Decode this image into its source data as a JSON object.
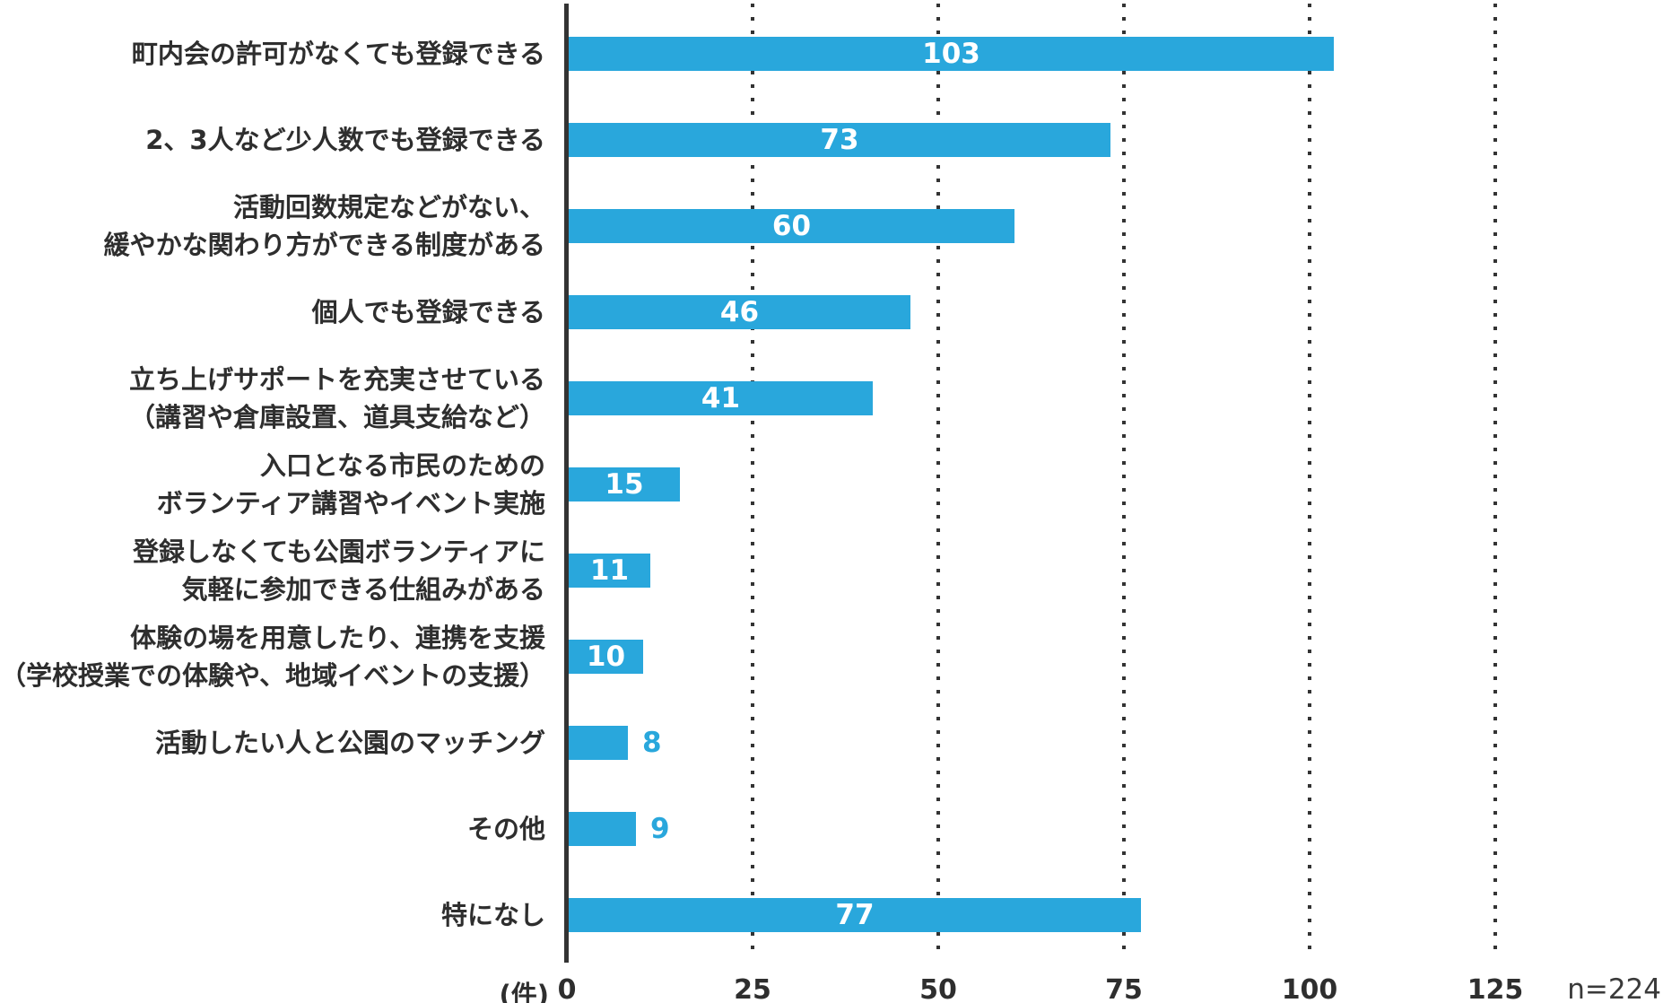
{
  "chart_data": {
    "type": "bar",
    "orientation": "horizontal",
    "title": "",
    "xlabel": "(件)",
    "ylabel": "",
    "sample_note": "n=224",
    "xlim": [
      0,
      125
    ],
    "x_ticks": [
      0,
      25,
      50,
      75,
      100,
      125
    ],
    "grid": "dotted vertical gridlines at each tick, no horizontal grid",
    "legend": "none",
    "colors": {
      "bar": "#29A7DC",
      "value_inside": "#FFFFFF",
      "value_outside": "#29A7DC",
      "category_text": "#2E2E2E",
      "tick_text": "#2E2E2E",
      "grid_and_axis": "#333333",
      "background": "#FFFFFF"
    },
    "categories": [
      "町内会の許可がなくても登録できる",
      "2、3人など少人数でも登録できる",
      "活動回数規定などがない、\n緩やかな関わり方ができる制度がある",
      "個人でも登録できる",
      "立ち上げサポートを充実させている\n（講習や倉庫設置、道具支給など）",
      "入口となる市民のための\nボランティア講習やイベント実施",
      "登録しなくても公園ボランティアに\n気軽に参加できる仕組みがある",
      "体験の場を用意したり、連携を支援\n（学校授業での体験や、地域イベントの支援）",
      "活動したい人と公園のマッチング",
      "その他",
      "特になし"
    ],
    "values": [
      103,
      73,
      60,
      46,
      41,
      15,
      11,
      10,
      8,
      9,
      77
    ]
  }
}
